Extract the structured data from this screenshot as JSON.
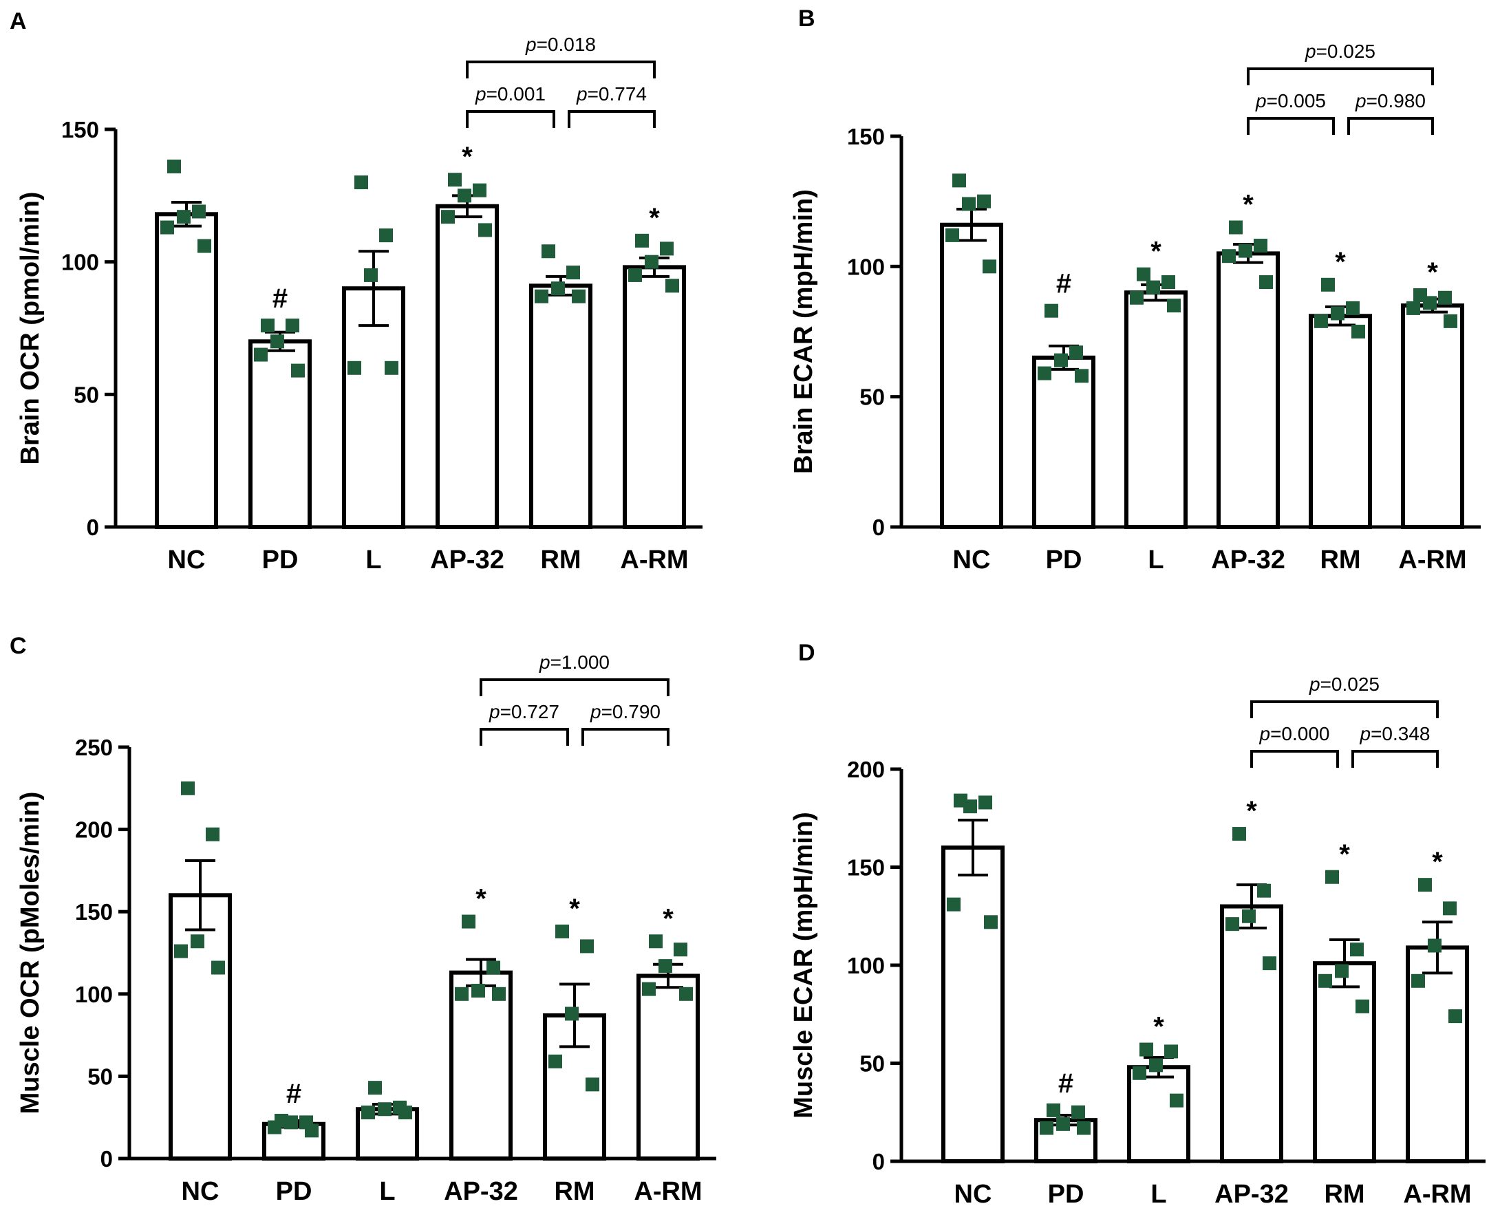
{
  "colors": {
    "point": "#1e5c3a",
    "bar_stroke": "#000000",
    "bar_fill": "#ffffff"
  },
  "chart_data": [
    {
      "panel": "A",
      "type": "bar",
      "ylabel": "Brain OCR (pmol/min)",
      "ylim": [
        0,
        150
      ],
      "yticks": [
        0,
        50,
        100,
        150
      ],
      "categories": [
        "NC",
        "PD",
        "L",
        "AP-32",
        "RM",
        "A-RM"
      ],
      "values": [
        118,
        70,
        90,
        121,
        91,
        98
      ],
      "sem": [
        4.5,
        3.5,
        14,
        4,
        3.5,
        3.5
      ],
      "points": [
        [
          136,
          119,
          117,
          113,
          106
        ],
        [
          76,
          76,
          70,
          65,
          59
        ],
        [
          130,
          110,
          95,
          60,
          60
        ],
        [
          131,
          127,
          125,
          117,
          112
        ],
        [
          104,
          96,
          90,
          87,
          87
        ],
        [
          108,
          105,
          100,
          95,
          91
        ]
      ],
      "significance": [
        "",
        "#",
        "",
        "*",
        "",
        "*"
      ],
      "comparisons": [
        {
          "from": 3,
          "to": 4,
          "label": "0.001",
          "level": 0
        },
        {
          "from": 4,
          "to": 5,
          "label": "0.774",
          "level": 0
        },
        {
          "from": 3,
          "to": 5,
          "label": "0.018",
          "level": 1
        }
      ]
    },
    {
      "panel": "B",
      "type": "bar",
      "ylabel": "Brain ECAR (mpH/min)",
      "ylim": [
        0,
        150
      ],
      "yticks": [
        0,
        50,
        100,
        150
      ],
      "categories": [
        "NC",
        "PD",
        "L",
        "AP-32",
        "RM",
        "A-RM"
      ],
      "values": [
        116,
        65,
        90,
        105,
        81,
        85
      ],
      "sem": [
        6,
        4.5,
        3,
        3.5,
        3.5,
        2.5
      ],
      "points": [
        [
          133,
          125,
          124,
          112,
          100
        ],
        [
          83,
          67,
          64,
          59,
          58
        ],
        [
          97,
          94,
          92,
          88,
          85
        ],
        [
          115,
          108,
          106,
          104,
          94
        ],
        [
          93,
          84,
          82,
          79,
          75
        ],
        [
          89,
          88,
          86,
          84,
          79
        ]
      ],
      "significance": [
        "",
        "#",
        "*",
        "*",
        "*",
        "*"
      ],
      "comparisons": [
        {
          "from": 3,
          "to": 4,
          "label": "0.005",
          "level": 0
        },
        {
          "from": 4,
          "to": 5,
          "label": "0.980",
          "level": 0
        },
        {
          "from": 3,
          "to": 5,
          "label": "0.025",
          "level": 1
        }
      ]
    },
    {
      "panel": "C",
      "type": "bar",
      "ylabel": "Muscle OCR (pMoles/min)",
      "ylim": [
        0,
        250
      ],
      "yticks": [
        0,
        50,
        100,
        150,
        200,
        250
      ],
      "categories": [
        "NC",
        "PD",
        "L",
        "AP-32",
        "RM",
        "A-RM"
      ],
      "values": [
        160,
        21,
        30,
        113,
        87,
        111
      ],
      "sem": [
        21,
        2,
        3,
        8,
        19,
        7
      ],
      "points": [
        [
          225,
          197,
          132,
          126,
          116
        ],
        [
          23,
          22,
          22,
          19,
          17
        ],
        [
          43,
          31,
          30,
          28,
          28
        ],
        [
          144,
          116,
          102,
          100,
          100
        ],
        [
          138,
          129,
          88,
          59,
          45
        ],
        [
          132,
          127,
          117,
          103,
          100
        ]
      ],
      "significance": [
        "",
        "#",
        "",
        "*",
        "*",
        "*"
      ],
      "comparisons": [
        {
          "from": 3,
          "to": 4,
          "label": "0.727",
          "level": 0
        },
        {
          "from": 4,
          "to": 5,
          "label": "0.790",
          "level": 0
        },
        {
          "from": 3,
          "to": 5,
          "label": "1.000",
          "level": 1
        }
      ]
    },
    {
      "panel": "D",
      "type": "bar",
      "ylabel": "Muscle ECAR (mpH/min)",
      "ylim": [
        0,
        200
      ],
      "yticks": [
        0,
        50,
        100,
        150,
        200
      ],
      "categories": [
        "NC",
        "PD",
        "L",
        "AP-32",
        "RM",
        "A-RM"
      ],
      "values": [
        160,
        21,
        48,
        130,
        101,
        109
      ],
      "sem": [
        14,
        2.5,
        5,
        11,
        12,
        13
      ],
      "points": [
        [
          184,
          183,
          181,
          131,
          122
        ],
        [
          26,
          25,
          19,
          17,
          17
        ],
        [
          57,
          56,
          49,
          45,
          31
        ],
        [
          167,
          138,
          125,
          121,
          101
        ],
        [
          145,
          108,
          97,
          92,
          79
        ],
        [
          141,
          129,
          110,
          92,
          74
        ]
      ],
      "significance": [
        "",
        "#",
        "*",
        "*",
        "*",
        "*"
      ],
      "comparisons": [
        {
          "from": 3,
          "to": 4,
          "label": "0.000",
          "level": 0
        },
        {
          "from": 4,
          "to": 5,
          "label": "0.348",
          "level": 0
        },
        {
          "from": 3,
          "to": 5,
          "label": "0.025",
          "level": 1
        }
      ]
    }
  ]
}
